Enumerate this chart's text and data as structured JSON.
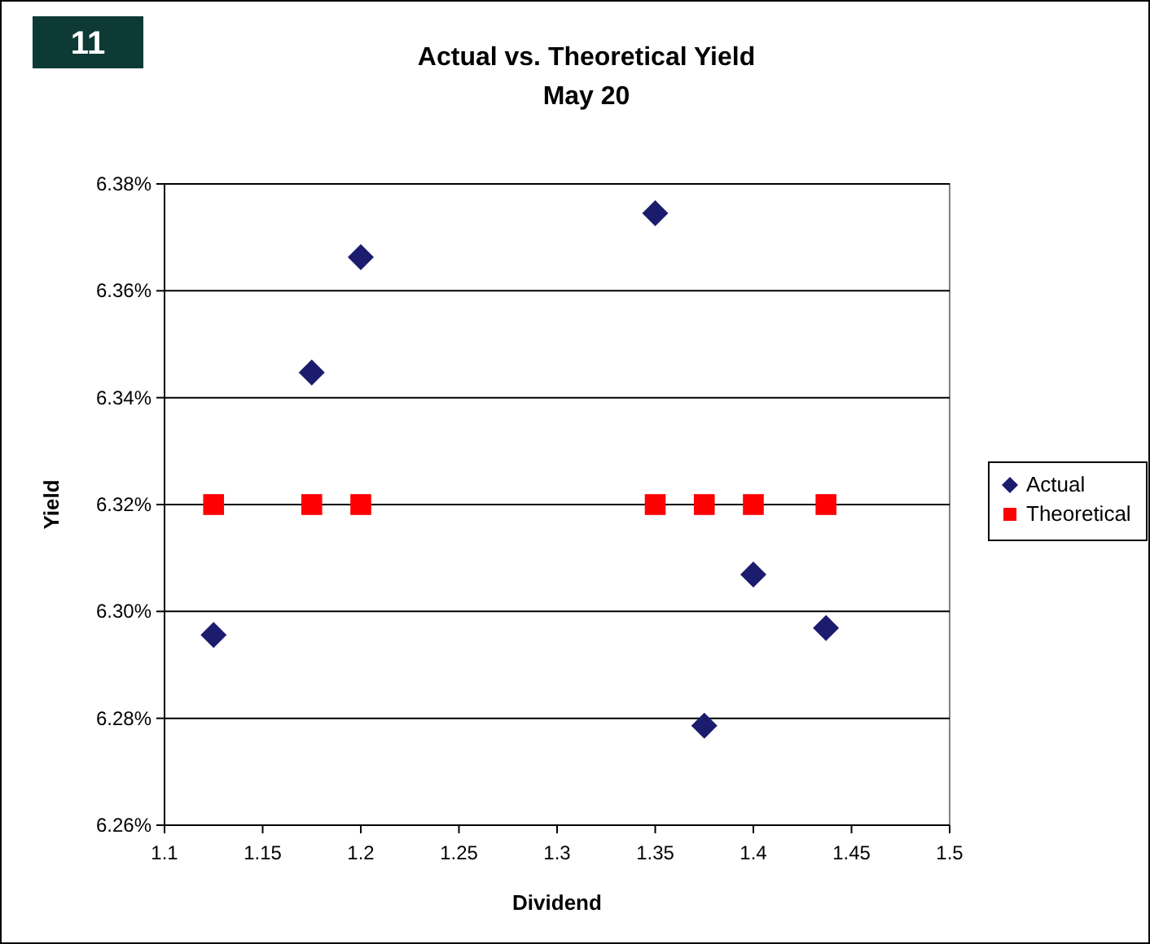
{
  "chart_data": {
    "type": "scatter",
    "title": "Actual vs. Theoretical Yield",
    "subtitle": "May 20",
    "xlabel": "Dividend",
    "ylabel": "Yield",
    "annotations": [
      "11"
    ],
    "xlim": [
      1.1,
      1.5
    ],
    "xticks": [
      1.1,
      1.15,
      1.2,
      1.25,
      1.3,
      1.35,
      1.4,
      1.45,
      1.5
    ],
    "ylim": [
      6.26,
      6.38
    ],
    "yticks": [
      {
        "value": 6.26,
        "label": "6.26%"
      },
      {
        "value": 6.28,
        "label": "6.28%"
      },
      {
        "value": 6.3,
        "label": "6.30%"
      },
      {
        "value": 6.32,
        "label": "6.32%"
      },
      {
        "value": 6.34,
        "label": "6.34%"
      },
      {
        "value": 6.36,
        "label": "6.36%"
      },
      {
        "value": 6.38,
        "label": "6.38%"
      }
    ],
    "grid": "y",
    "legend": "right",
    "series": [
      {
        "name": "Actual",
        "color": "#1c1c6e",
        "marker": "diamond",
        "x": [
          1.125,
          1.175,
          1.2,
          1.35,
          1.375,
          1.4,
          1.437
        ],
        "values": [
          6.2956,
          6.3447,
          6.3663,
          6.3745,
          6.2786,
          6.3069,
          6.2969
        ]
      },
      {
        "name": "Theoretical",
        "color": "#ff0000",
        "marker": "square",
        "x": [
          1.125,
          1.175,
          1.2,
          1.35,
          1.375,
          1.4,
          1.437
        ],
        "values": [
          6.32,
          6.32,
          6.32,
          6.32,
          6.32,
          6.32,
          6.32
        ]
      }
    ]
  }
}
